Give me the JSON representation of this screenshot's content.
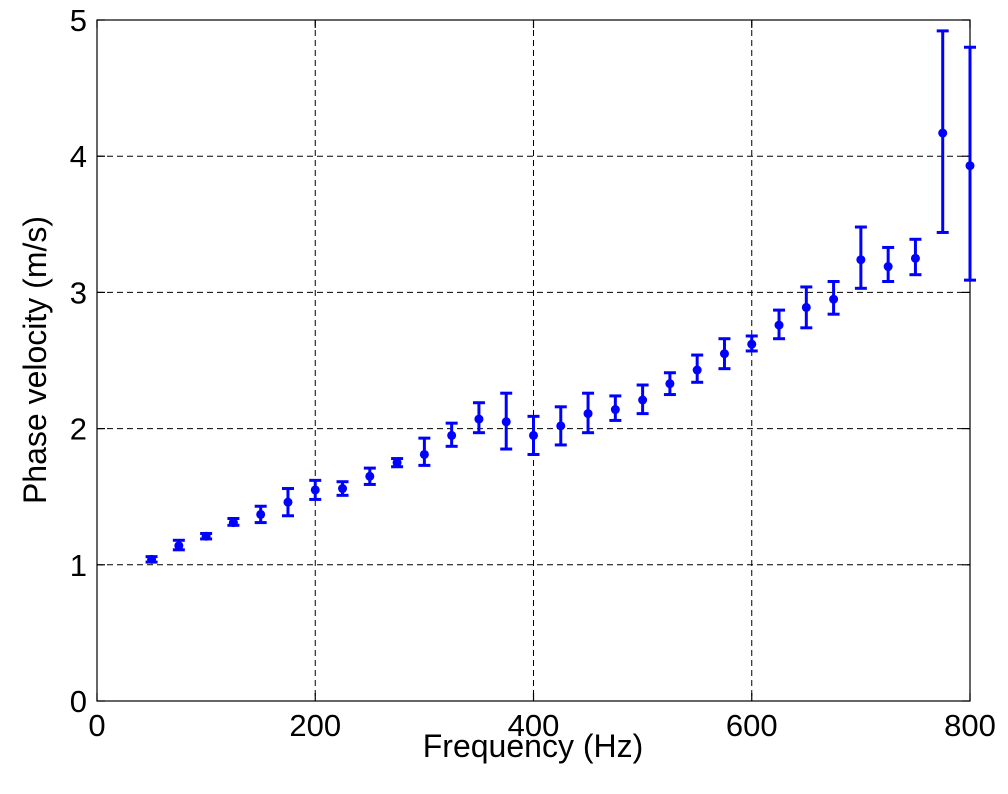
{
  "chart_data": {
    "type": "scatter",
    "title": "",
    "xlabel": "Frequency (Hz)",
    "ylabel": "Phase velocity (m/s)",
    "xlim": [
      0,
      800
    ],
    "ylim": [
      0,
      5
    ],
    "xticks": [
      "0",
      "200",
      "400",
      "600",
      "800"
    ],
    "yticks": [
      "0",
      "1",
      "2",
      "3",
      "4",
      "5"
    ],
    "grid": true,
    "legend": "none",
    "series": [
      {
        "color": "#0000ff",
        "marker": "dot",
        "error_bars": true,
        "points": [
          {
            "x": 50,
            "y": 1.04,
            "lo": 1.02,
            "hi": 1.06
          },
          {
            "x": 75,
            "y": 1.14,
            "lo": 1.11,
            "hi": 1.18
          },
          {
            "x": 100,
            "y": 1.21,
            "lo": 1.19,
            "hi": 1.23
          },
          {
            "x": 125,
            "y": 1.31,
            "lo": 1.29,
            "hi": 1.34
          },
          {
            "x": 150,
            "y": 1.37,
            "lo": 1.31,
            "hi": 1.43
          },
          {
            "x": 175,
            "y": 1.46,
            "lo": 1.36,
            "hi": 1.56
          },
          {
            "x": 200,
            "y": 1.55,
            "lo": 1.48,
            "hi": 1.62
          },
          {
            "x": 225,
            "y": 1.56,
            "lo": 1.51,
            "hi": 1.61
          },
          {
            "x": 250,
            "y": 1.65,
            "lo": 1.59,
            "hi": 1.71
          },
          {
            "x": 275,
            "y": 1.75,
            "lo": 1.72,
            "hi": 1.78
          },
          {
            "x": 300,
            "y": 1.81,
            "lo": 1.73,
            "hi": 1.93
          },
          {
            "x": 325,
            "y": 1.95,
            "lo": 1.87,
            "hi": 2.04
          },
          {
            "x": 350,
            "y": 2.07,
            "lo": 1.97,
            "hi": 2.19
          },
          {
            "x": 375,
            "y": 2.05,
            "lo": 1.85,
            "hi": 2.26
          },
          {
            "x": 400,
            "y": 1.95,
            "lo": 1.81,
            "hi": 2.09
          },
          {
            "x": 425,
            "y": 2.02,
            "lo": 1.88,
            "hi": 2.16
          },
          {
            "x": 450,
            "y": 2.11,
            "lo": 1.97,
            "hi": 2.26
          },
          {
            "x": 475,
            "y": 2.14,
            "lo": 2.06,
            "hi": 2.24
          },
          {
            "x": 500,
            "y": 2.21,
            "lo": 2.11,
            "hi": 2.32
          },
          {
            "x": 525,
            "y": 2.33,
            "lo": 2.25,
            "hi": 2.41
          },
          {
            "x": 550,
            "y": 2.43,
            "lo": 2.34,
            "hi": 2.54
          },
          {
            "x": 575,
            "y": 2.55,
            "lo": 2.44,
            "hi": 2.66
          },
          {
            "x": 600,
            "y": 2.62,
            "lo": 2.57,
            "hi": 2.68
          },
          {
            "x": 625,
            "y": 2.76,
            "lo": 2.66,
            "hi": 2.87
          },
          {
            "x": 650,
            "y": 2.89,
            "lo": 2.74,
            "hi": 3.04
          },
          {
            "x": 675,
            "y": 2.95,
            "lo": 2.84,
            "hi": 3.08
          },
          {
            "x": 700,
            "y": 3.24,
            "lo": 3.03,
            "hi": 3.48
          },
          {
            "x": 725,
            "y": 3.19,
            "lo": 3.08,
            "hi": 3.33
          },
          {
            "x": 750,
            "y": 3.25,
            "lo": 3.13,
            "hi": 3.39
          },
          {
            "x": 775,
            "y": 4.17,
            "lo": 3.44,
            "hi": 4.92
          },
          {
            "x": 800,
            "y": 3.93,
            "lo": 3.09,
            "hi": 4.8
          }
        ]
      }
    ]
  }
}
